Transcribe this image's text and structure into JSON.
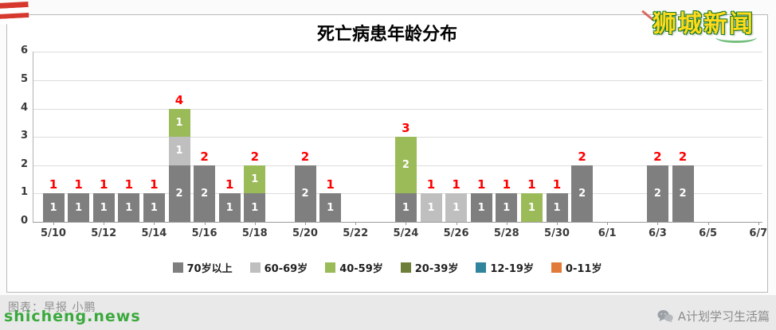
{
  "page": {
    "site_logo": "狮城新闻",
    "credit_text": "图表：早报 小鹏",
    "watermark": "shicheng.news",
    "wechat_account": "A计划学习生活篇"
  },
  "chart_data": {
    "type": "bar",
    "stacked": true,
    "title": "死亡病患年龄分布",
    "ylim": [
      0,
      6
    ],
    "yticks": [
      0,
      1,
      2,
      3,
      4,
      5,
      6
    ],
    "grid": true,
    "legend_position": "bottom",
    "x_start_day": "5/10",
    "num_days": 29,
    "x_tick_labels": [
      "5/10",
      "5/12",
      "5/14",
      "5/16",
      "5/18",
      "5/20",
      "5/22",
      "5/24",
      "5/26",
      "5/28",
      "5/30",
      "6/1",
      "6/3",
      "6/5",
      "6/7"
    ],
    "x_tick_days": [
      0,
      2,
      4,
      6,
      8,
      10,
      12,
      14,
      16,
      18,
      20,
      22,
      24,
      26,
      28
    ],
    "legend": [
      {
        "label": "70岁以上",
        "color": "#7f7f7f"
      },
      {
        "label": "60-69岁",
        "color": "#bfbfbf"
      },
      {
        "label": "40-59岁",
        "color": "#9bbb59"
      },
      {
        "label": "20-39岁",
        "color": "#6e7f3a"
      },
      {
        "label": "12-19岁",
        "color": "#31849b"
      },
      {
        "label": "0-11岁",
        "color": "#e07b39"
      }
    ],
    "total_label_color": "#fe0000",
    "segment_label_color": "#ffffff",
    "bars": [
      {
        "date": "5/10",
        "day": 0,
        "total": 1,
        "segments": [
          {
            "age": "70岁以上",
            "value": 1
          }
        ]
      },
      {
        "date": "5/11",
        "day": 1,
        "total": 1,
        "segments": [
          {
            "age": "70岁以上",
            "value": 1
          }
        ]
      },
      {
        "date": "5/12",
        "day": 2,
        "total": 1,
        "segments": [
          {
            "age": "70岁以上",
            "value": 1
          }
        ]
      },
      {
        "date": "5/13",
        "day": 3,
        "total": 1,
        "segments": [
          {
            "age": "70岁以上",
            "value": 1
          }
        ]
      },
      {
        "date": "5/14",
        "day": 4,
        "total": 1,
        "segments": [
          {
            "age": "70岁以上",
            "value": 1
          }
        ]
      },
      {
        "date": "5/15",
        "day": 5,
        "total": 4,
        "segments": [
          {
            "age": "70岁以上",
            "value": 2
          },
          {
            "age": "60-69岁",
            "value": 1
          },
          {
            "age": "40-59岁",
            "value": 1
          }
        ]
      },
      {
        "date": "5/16",
        "day": 6,
        "total": 2,
        "segments": [
          {
            "age": "70岁以上",
            "value": 2
          }
        ]
      },
      {
        "date": "5/17",
        "day": 7,
        "total": 1,
        "segments": [
          {
            "age": "70岁以上",
            "value": 1
          }
        ]
      },
      {
        "date": "5/18",
        "day": 8,
        "total": 2,
        "segments": [
          {
            "age": "70岁以上",
            "value": 1
          },
          {
            "age": "40-59岁",
            "value": 1
          }
        ]
      },
      {
        "date": "5/20",
        "day": 10,
        "total": 2,
        "segments": [
          {
            "age": "70岁以上",
            "value": 2
          }
        ]
      },
      {
        "date": "5/21",
        "day": 11,
        "total": 1,
        "segments": [
          {
            "age": "70岁以上",
            "value": 1
          }
        ]
      },
      {
        "date": "5/24",
        "day": 14,
        "total": 3,
        "segments": [
          {
            "age": "70岁以上",
            "value": 1
          },
          {
            "age": "40-59岁",
            "value": 2
          }
        ]
      },
      {
        "date": "5/25",
        "day": 15,
        "total": 1,
        "segments": [
          {
            "age": "60-69岁",
            "value": 1
          }
        ]
      },
      {
        "date": "5/26",
        "day": 16,
        "total": 1,
        "segments": [
          {
            "age": "60-69岁",
            "value": 1
          }
        ]
      },
      {
        "date": "5/27",
        "day": 17,
        "total": 1,
        "segments": [
          {
            "age": "70岁以上",
            "value": 1
          }
        ]
      },
      {
        "date": "5/28",
        "day": 18,
        "total": 1,
        "segments": [
          {
            "age": "70岁以上",
            "value": 1
          }
        ]
      },
      {
        "date": "5/29",
        "day": 19,
        "total": 1,
        "segments": [
          {
            "age": "40-59岁",
            "value": 1
          }
        ]
      },
      {
        "date": "5/30",
        "day": 20,
        "total": 1,
        "segments": [
          {
            "age": "70岁以上",
            "value": 1
          }
        ]
      },
      {
        "date": "5/31",
        "day": 21,
        "total": 2,
        "segments": [
          {
            "age": "70岁以上",
            "value": 2
          }
        ]
      },
      {
        "date": "6/3",
        "day": 24,
        "total": 2,
        "segments": [
          {
            "age": "70岁以上",
            "value": 2
          }
        ]
      },
      {
        "date": "6/4",
        "day": 25,
        "total": 2,
        "segments": [
          {
            "age": "70岁以上",
            "value": 2
          }
        ]
      }
    ]
  }
}
